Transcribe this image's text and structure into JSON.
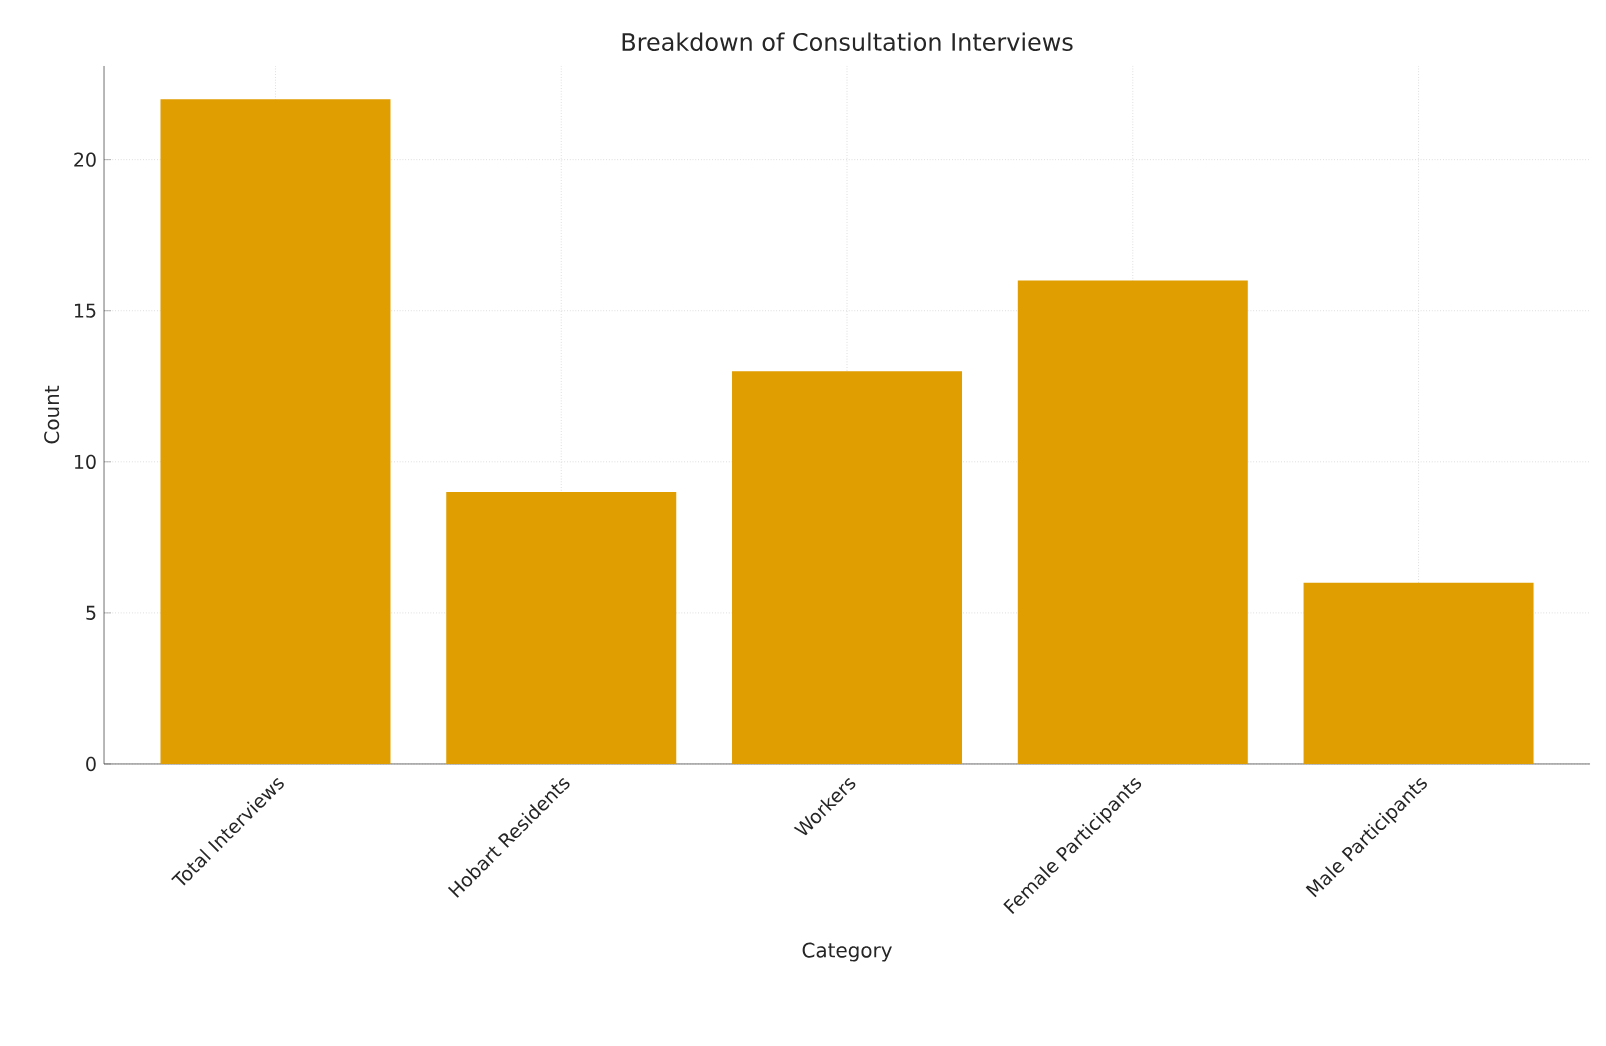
{
  "chart_data": {
    "type": "bar",
    "title": "Breakdown of Consultation Interviews",
    "xlabel": "Category",
    "ylabel": "Count",
    "categories": [
      "Total Interviews",
      "Hobart Residents",
      "Workers",
      "Female Participants",
      "Male Participants"
    ],
    "values": [
      22,
      9,
      13,
      16,
      6
    ],
    "color": "#e09e00",
    "ylim": [
      0,
      23.1
    ],
    "yticks": [
      0,
      5,
      10,
      15,
      20
    ],
    "grid": true
  }
}
